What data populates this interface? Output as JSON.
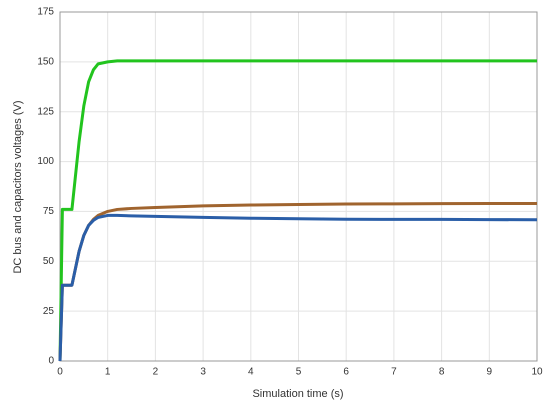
{
  "chart_data": {
    "type": "line",
    "xlabel": "Simulation time (s)",
    "ylabel": "DC bus and capacitors voltages (V)",
    "x": [
      0,
      0.05,
      0.25,
      0.4,
      0.5,
      0.6,
      0.7,
      0.8,
      1,
      1.2,
      1.5,
      2,
      3,
      4,
      5,
      6,
      7,
      8,
      9,
      10
    ],
    "series": [
      {
        "color": "#22c41e",
        "values": [
          0,
          76,
          76,
          110,
          128,
          140,
          146,
          149,
          150,
          150.5,
          150.5,
          150.5,
          150.5,
          150.5,
          150.5,
          150.5,
          150.5,
          150.5,
          150.5,
          150.5
        ]
      },
      {
        "color": "#a0642e",
        "values": [
          0,
          38,
          38,
          55,
          63,
          68,
          71,
          73,
          75,
          76,
          76.5,
          77,
          77.8,
          78.2,
          78.5,
          78.7,
          78.8,
          78.9,
          79,
          79
        ]
      },
      {
        "color": "#2a5ea8",
        "values": [
          0,
          38,
          38,
          55,
          63,
          68,
          70.5,
          72,
          73,
          73,
          72.8,
          72.5,
          72,
          71.6,
          71.3,
          71.1,
          71,
          71,
          70.9,
          70.8
        ]
      }
    ],
    "xlim": [
      0,
      10
    ],
    "xticks": [
      0,
      1,
      2,
      3,
      4,
      5,
      6,
      7,
      8,
      9,
      10
    ],
    "ylim": [
      0,
      175
    ],
    "yticks": [
      0,
      25,
      50,
      75,
      100,
      125,
      150,
      175
    ],
    "grid": true
  }
}
